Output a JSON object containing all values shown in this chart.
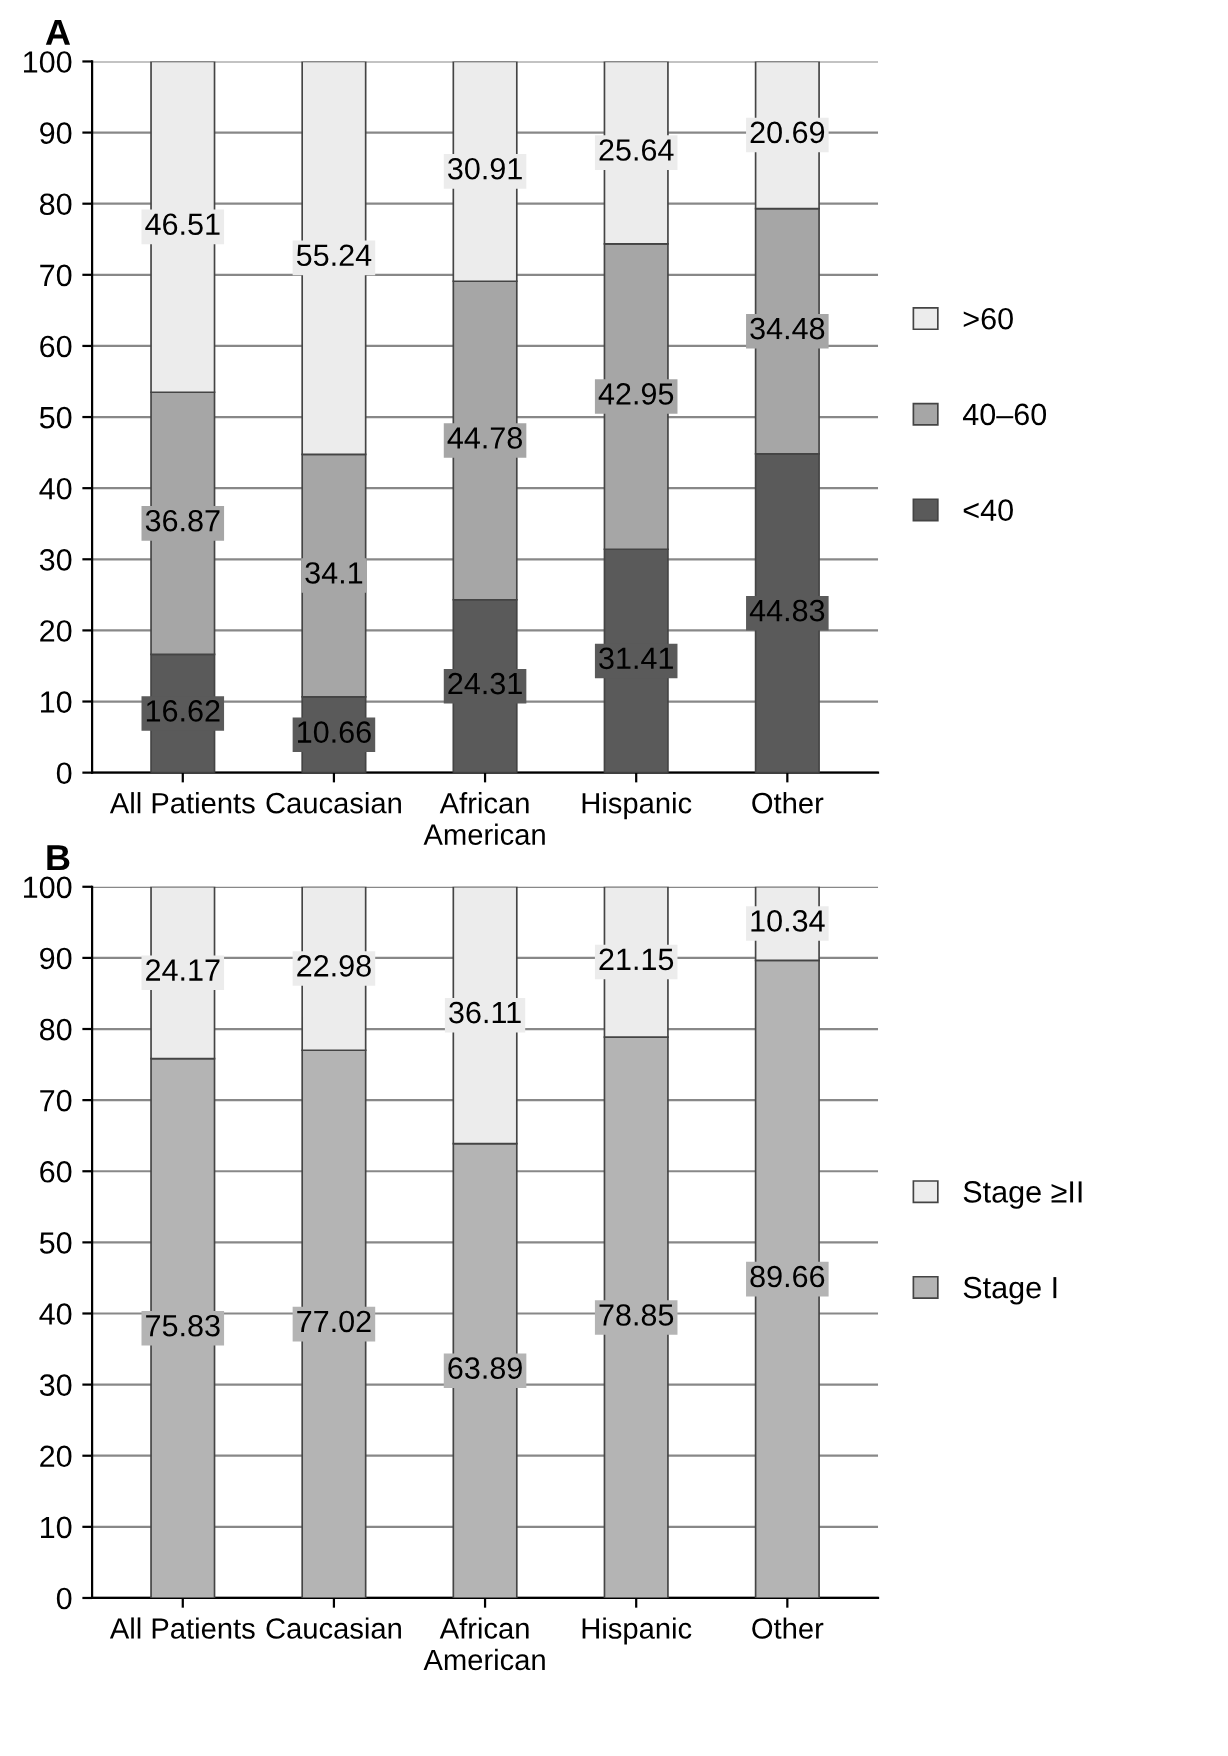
{
  "chart_data": [
    {
      "type": "bar",
      "title": "A",
      "stacked": true,
      "categories": [
        "All Patients",
        "Caucasian",
        "African\nAmerican",
        "Hispanic",
        "Other"
      ],
      "series": [
        {
          "name": "<40",
          "color": "#5a5a5a",
          "values": [
            16.62,
            10.66,
            24.31,
            31.41,
            44.83
          ]
        },
        {
          "name": "40–60",
          "color": "#a6a6a6",
          "values": [
            36.87,
            34.1,
            44.78,
            42.95,
            34.48
          ]
        },
        {
          "name": ">60",
          "color": "#ececec",
          "values": [
            46.51,
            55.24,
            30.91,
            25.64,
            20.69
          ]
        }
      ],
      "ylim": [
        0,
        100
      ],
      "yticks": [
        0,
        10,
        20,
        30,
        40,
        50,
        60,
        70,
        80,
        90,
        100
      ],
      "grid": "y",
      "legend": "right",
      "data_labels": true
    },
    {
      "type": "bar",
      "title": "B",
      "stacked": true,
      "categories": [
        "All Patients",
        "Caucasian",
        "African\nAmerican",
        "Hispanic",
        "Other"
      ],
      "series": [
        {
          "name": "Stage I",
          "color": "#b4b4b4",
          "values": [
            75.83,
            77.02,
            63.89,
            78.85,
            89.66
          ]
        },
        {
          "name": "Stage ≥II",
          "color": "#ececec",
          "values": [
            24.17,
            22.98,
            36.11,
            21.15,
            10.34
          ]
        }
      ],
      "ylim": [
        0,
        100
      ],
      "yticks": [
        0,
        10,
        20,
        30,
        40,
        50,
        60,
        70,
        80,
        90,
        100
      ],
      "grid": "y",
      "legend": "right",
      "data_labels": true
    }
  ]
}
